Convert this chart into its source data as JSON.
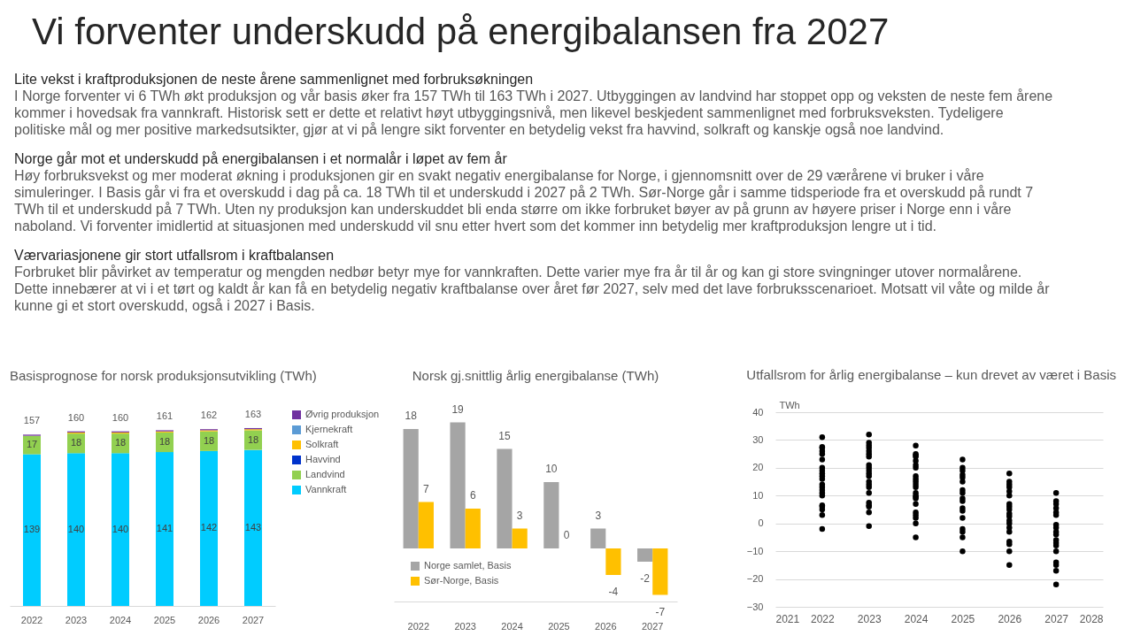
{
  "chart_data": [
    {
      "type": "other",
      "title": "Vi forventer underskudd på energibalansen fra 2027",
      "annotations": [
        "Lite vekst i kraftproduksjonen de neste årene sammenlignet med forbruksøkningen",
        "I Norge forventer vi 6 TWh økt produksjon og vår basis øker fra 157 TWh til 163 TWh i 2027. Utbyggingen av landvind har stoppet opp og veksten de neste fem årene kommer i hovedsak fra vannkraft. Historisk sett er dette et relativt høyt utbyggingsnivå, men likevel beskjedent sammenlignet med forbruksveksten. Tydeligere politiske mål og mer positive markedsutsikter, gjør at vi på lengre sikt forventer en betydelig vekst fra havvind, solkraft og kanskje også noe landvind.",
        "Norge går mot et underskudd på energibalansen i et normalår i løpet av fem år",
        "Høy forbruksvekst og mer moderat økning i produksjonen gir en svakt negativ energibalanse for Norge, i gjennomsnitt over de 29 værårene vi bruker i våre simuleringer. I Basis går vi fra et overskudd i dag på ca. 18 TWh til et underskudd i 2027 på 2 TWh. Sør-Norge går i samme tidsperiode fra et overskudd på rundt 7 TWh til et underskudd på 7 TWh. Uten ny produksjon kan underskuddet bli enda større om ikke forbruket bøyer av på grunn av høyere priser i Norge enn i våre naboland. Vi forventer imidlertid at situasjonen med underskudd vil snu etter hvert som det kommer inn betydelig mer kraftproduksjon lengre ut i tid.",
        "Værvariasjonene gir stort utfallsrom i kraftbalansen",
        "Forbruket blir påvirket av temperatur og mengden nedbør betyr mye for vannkraften. Dette varier mye fra år til år og kan gi store svingninger utover normalårene. Dette innebærer at vi i et tørt og kaldt år kan få en betydelig negativ kraftbalanse over året før 2027, selv med det lave forbruksscenarioet. Motsatt vil våte og milde år kunne gi et stort overskudd, også i 2027 i Basis."
      ]
    },
    {
      "type": "bar",
      "title": "Basisprognose for norsk produksjonsutvikling (TWh)",
      "categories": [
        "2022",
        "2023",
        "2024",
        "2025",
        "2026",
        "2027"
      ],
      "stacked": true,
      "legend": "right",
      "totals": [
        "157",
        "160",
        "160",
        "161",
        "162",
        "163"
      ],
      "series": [
        {
          "name": "Vannkraft",
          "color": "#00ccff",
          "values": [
            139,
            140,
            140,
            141,
            142,
            143
          ],
          "value_labels": [
            "139",
            "140",
            "140",
            "141",
            "142",
            "143"
          ]
        },
        {
          "name": "Landvind",
          "color": "#92d050",
          "values": [
            17,
            18,
            18,
            18,
            18,
            18
          ],
          "value_labels": [
            "17",
            "18",
            "18",
            "18",
            "18",
            "18"
          ]
        },
        {
          "name": "Havvind",
          "color": "#0033cc",
          "values": [
            0,
            0,
            0,
            0,
            0,
            0
          ]
        },
        {
          "name": "Solkraft",
          "color": "#ffc000",
          "values": [
            0,
            1,
            1,
            1,
            1,
            1
          ]
        },
        {
          "name": "Kjernekraft",
          "color": "#5b9bd5",
          "values": [
            0,
            0,
            0,
            0,
            0,
            0
          ]
        },
        {
          "name": "Øvrig produksjon",
          "color": "#7030a0",
          "values": [
            1,
            1,
            1,
            1,
            1,
            1
          ]
        }
      ]
    },
    {
      "type": "bar",
      "title": "Norsk gj.snittlig årlig energibalanse (TWh)",
      "categories": [
        "2022",
        "2023",
        "2024",
        "2025",
        "2026",
        "2027"
      ],
      "data_labels": true,
      "legend": "bottom left",
      "series": [
        {
          "name": "Norge samlet, Basis",
          "color": "#a5a5a5",
          "values": [
            18,
            19,
            15,
            10,
            3,
            -2
          ]
        },
        {
          "name": "Sør-Norge, Basis",
          "color": "#ffc000",
          "values": [
            7,
            6,
            3,
            0,
            -4,
            -7
          ]
        }
      ]
    },
    {
      "type": "scatter",
      "title": "Utfallsrom for årlig energibalanse – kun drevet av været i Basis",
      "ylabel": "TWh",
      "xlim": [
        2021,
        2028
      ],
      "xticks": [
        2021,
        2022,
        2023,
        2024,
        2025,
        2026,
        2027,
        2028
      ],
      "ylim": [
        -30,
        40
      ],
      "yticks": [
        -30,
        -20,
        -10,
        0,
        10,
        20,
        30,
        40
      ],
      "grid": "y",
      "marker": "circle",
      "series": [
        {
          "color": "#000000",
          "x": [
            2022,
            2022,
            2022,
            2022,
            2022,
            2022,
            2022,
            2022,
            2022,
            2022,
            2022,
            2022,
            2022,
            2022,
            2022,
            2022,
            2022,
            2022,
            2022,
            2022,
            2022,
            2023,
            2023,
            2023,
            2023,
            2023,
            2023,
            2023,
            2023,
            2023,
            2023,
            2023,
            2023,
            2023,
            2023,
            2023,
            2023,
            2023,
            2023,
            2023,
            2023,
            2023,
            2024,
            2024,
            2024,
            2024,
            2024,
            2024,
            2024,
            2024,
            2024,
            2024,
            2024,
            2024,
            2024,
            2024,
            2024,
            2024,
            2024,
            2024,
            2024,
            2024,
            2024,
            2024,
            2025,
            2025,
            2025,
            2025,
            2025,
            2025,
            2025,
            2025,
            2025,
            2025,
            2025,
            2025,
            2025,
            2025,
            2025,
            2025,
            2025,
            2026,
            2026,
            2026,
            2026,
            2026,
            2026,
            2026,
            2026,
            2026,
            2026,
            2026,
            2026,
            2026,
            2026,
            2026,
            2026,
            2026,
            2026,
            2026,
            2027,
            2027,
            2027,
            2027,
            2027,
            2027,
            2027,
            2027,
            2027,
            2027,
            2027,
            2027,
            2027,
            2027,
            2027,
            2027,
            2027,
            2027
          ],
          "values": [
            31,
            27.5,
            27,
            26,
            25,
            23,
            20,
            19,
            18,
            17,
            16,
            14,
            13,
            12,
            11,
            10,
            6.5,
            6,
            5,
            3,
            -2,
            32,
            29,
            28,
            27,
            26,
            25,
            24,
            21,
            20,
            19,
            18,
            17,
            15,
            14,
            13,
            11,
            7.5,
            6.5,
            6,
            4,
            -1,
            28,
            25,
            24.5,
            24,
            22.5,
            21,
            20,
            17,
            16,
            15,
            14,
            13,
            11,
            10,
            9.5,
            9,
            7,
            4,
            3,
            2,
            0,
            -5,
            23,
            20,
            19,
            17.5,
            16.5,
            15,
            12,
            11,
            9,
            8,
            5.5,
            4.5,
            2,
            -2,
            -3,
            -5,
            -10,
            18,
            15,
            14,
            13,
            11.5,
            10,
            7,
            6,
            5,
            3.5,
            2.5,
            1,
            0,
            -1.5,
            -3,
            -6.5,
            -7.5,
            -10,
            -15,
            11,
            8,
            7,
            5.5,
            4,
            3,
            -0.5,
            -1.5,
            -3,
            -4,
            -6,
            -7,
            -8,
            -10,
            -14,
            -15,
            -17,
            -22
          ]
        }
      ]
    }
  ]
}
